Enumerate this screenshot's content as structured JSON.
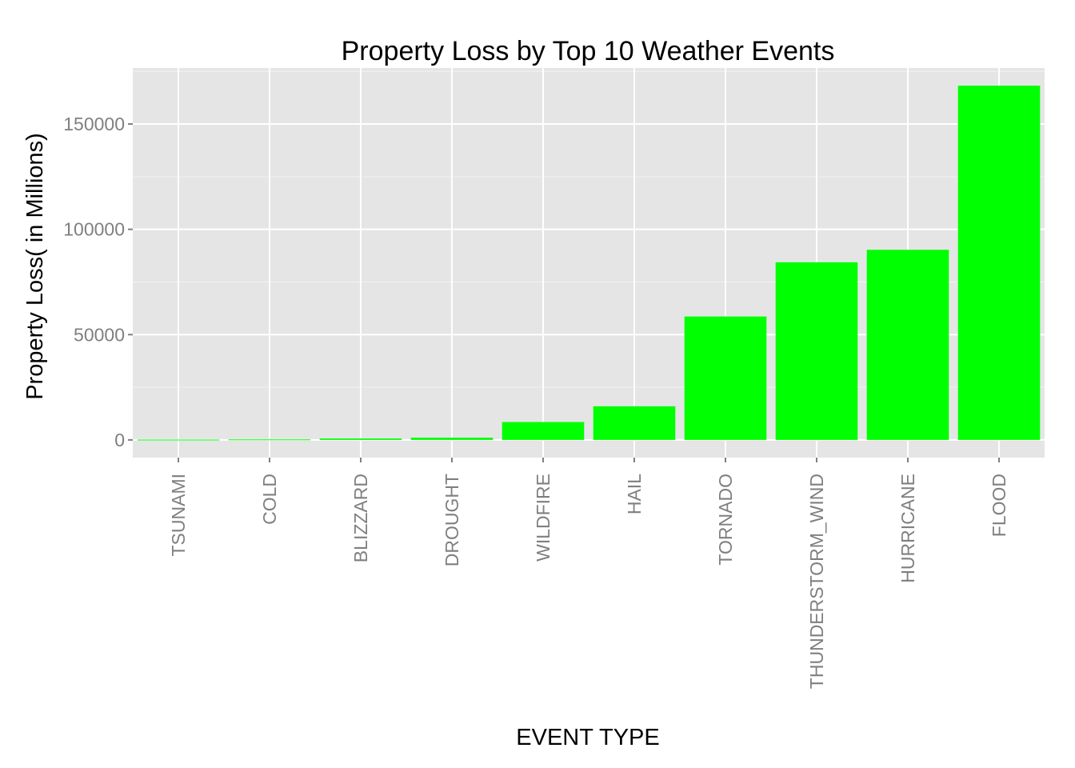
{
  "chart_data": {
    "type": "bar",
    "title": "Property Loss by Top 10 Weather Events",
    "xlabel": "EVENT TYPE",
    "ylabel": "Property Loss( in Millions)",
    "categories": [
      "TSUNAMI",
      "COLD",
      "BLIZZARD",
      "DROUGHT",
      "WILDFIRE",
      "HAIL",
      "TORNADO",
      "THUNDERSTORM_WIND",
      "HURRICANE",
      "FLOOD"
    ],
    "values": [
      144,
      235,
      660,
      1046,
      8492,
      15975,
      58603,
      84355,
      90271,
      168212
    ],
    "ylim": [
      -8400,
      176600
    ],
    "yticks": [
      0,
      50000,
      100000,
      150000
    ],
    "ytick_labels": [
      "0",
      "50000",
      "100000",
      "150000"
    ],
    "grid": true,
    "bar_color": "#00ff00",
    "panel_color": "#e5e5e5",
    "grid_color": "#ffffff"
  }
}
